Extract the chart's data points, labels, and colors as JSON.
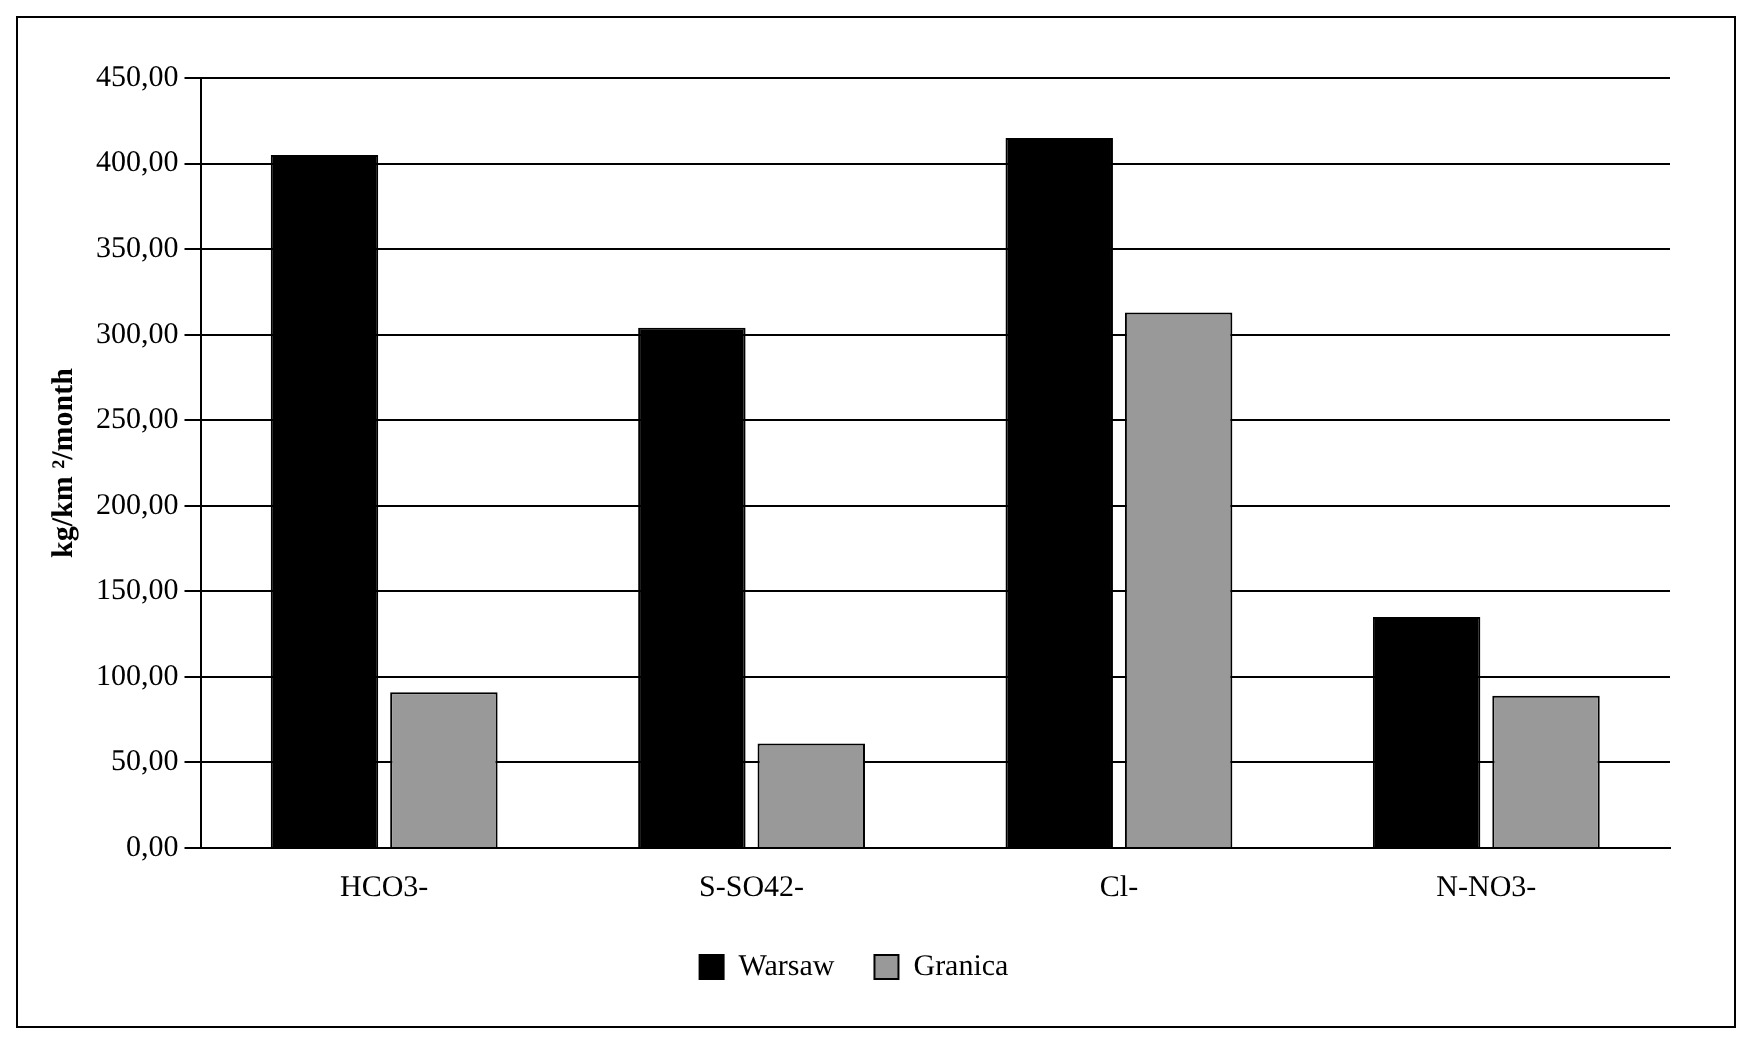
{
  "chart_data": {
    "type": "bar",
    "ylabel": "kg/km ²/month",
    "categories": [
      "HCO3-",
      "S-SO42-",
      "Cl-",
      "N-NO3-"
    ],
    "series": [
      {
        "name": "Warsaw",
        "color": "#000000",
        "values": [
          405,
          304,
          415,
          135
        ]
      },
      {
        "name": "Granica",
        "color": "#999999",
        "values": [
          91,
          61,
          313,
          89
        ]
      }
    ],
    "ylim": [
      0,
      450
    ],
    "yticks": [
      {
        "value": 0,
        "label": "0,00"
      },
      {
        "value": 50,
        "label": "50,00"
      },
      {
        "value": 100,
        "label": "100,00"
      },
      {
        "value": 150,
        "label": "150,00"
      },
      {
        "value": 200,
        "label": "200,00"
      },
      {
        "value": 250,
        "label": "250,00"
      },
      {
        "value": 300,
        "label": "300,00"
      },
      {
        "value": 350,
        "label": "350,00"
      },
      {
        "value": 400,
        "label": "400,00"
      },
      {
        "value": 450,
        "label": "450,00"
      }
    ],
    "grid": "y",
    "legend": "bottom"
  }
}
